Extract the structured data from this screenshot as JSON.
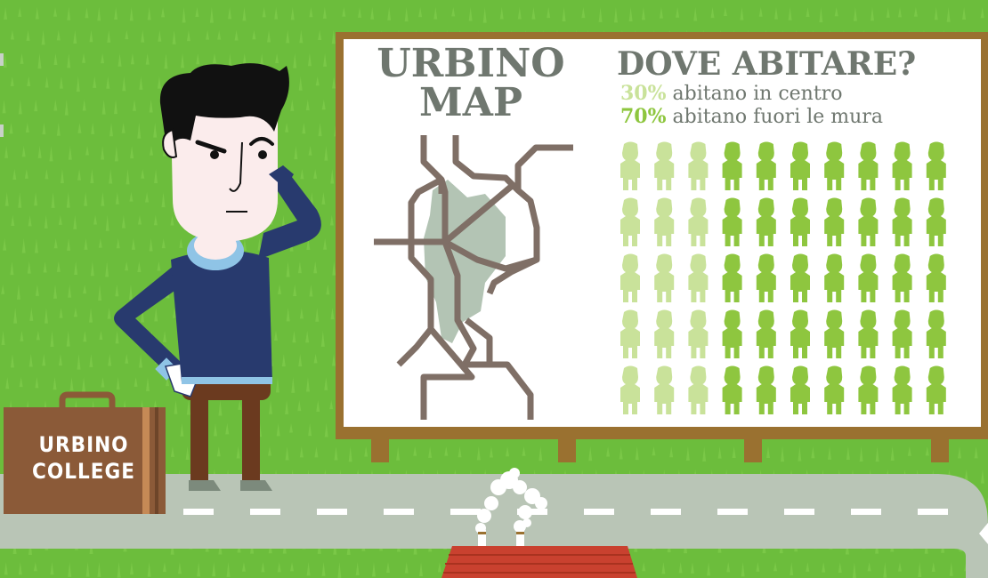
{
  "billboard": {
    "map_title_line1": "URBINO",
    "map_title_line2": "MAP",
    "question": "DOVE ABITARE?",
    "stat_centro_pct": "30%",
    "stat_centro_text": " abitano in centro",
    "stat_fuori_pct": "70%",
    "stat_fuori_text": " abitano fuori le mura",
    "pictogram": {
      "rows": 5,
      "cols": 10,
      "light_per_row": 3,
      "light_color": "#c9e29a",
      "dark_color": "#8ec63f"
    }
  },
  "suitcase": {
    "line1": "URBINO",
    "line2": "COLLEGE"
  },
  "colors": {
    "grass": "#6cbd3c",
    "billboard_frame": "#9a7130",
    "map_lines": "#7f6f66",
    "city_center": "#b3c4b4",
    "road": "#b9c5b6",
    "sweater": "#283a6e",
    "suitcase": "#8b5a38"
  }
}
